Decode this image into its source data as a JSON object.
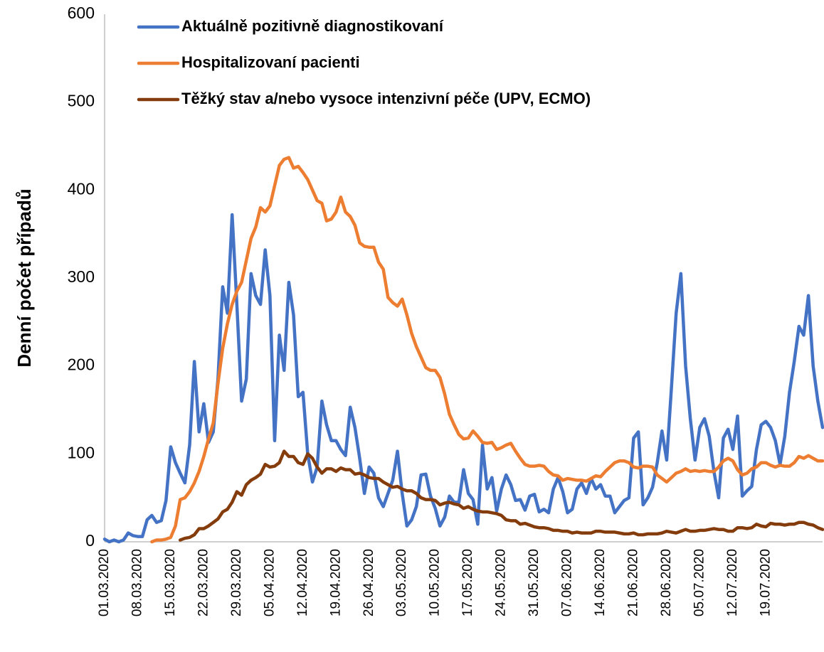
{
  "chart_data": {
    "type": "line",
    "ylabel": "Denní počet případů",
    "ylim": [
      0,
      600
    ],
    "yticks": [
      0,
      100,
      200,
      300,
      400,
      500,
      600
    ],
    "grid": false,
    "legend": "top-left",
    "categories": [
      "01.03.2020",
      null,
      null,
      null,
      null,
      null,
      null,
      "08.03.2020",
      null,
      null,
      null,
      null,
      null,
      null,
      "15.03.2020",
      null,
      null,
      null,
      null,
      null,
      null,
      "22.03.2020",
      null,
      null,
      null,
      null,
      null,
      null,
      "29.03.2020",
      null,
      null,
      null,
      null,
      null,
      null,
      "05.04.2020",
      null,
      null,
      null,
      null,
      null,
      null,
      "12.04.2020",
      null,
      null,
      null,
      null,
      null,
      null,
      "19.04.2020",
      null,
      null,
      null,
      null,
      null,
      null,
      "26.04.2020",
      null,
      null,
      null,
      null,
      null,
      null,
      "03.05.2020",
      null,
      null,
      null,
      null,
      null,
      null,
      "10.05.2020",
      null,
      null,
      null,
      null,
      null,
      null,
      "17.05.2020",
      null,
      null,
      null,
      null,
      null,
      null,
      "24.05.2020",
      null,
      null,
      null,
      null,
      null,
      null,
      "31.05.2020",
      null,
      null,
      null,
      null,
      null,
      null,
      "07.06.2020",
      null,
      null,
      null,
      null,
      null,
      null,
      "14.06.2020",
      null,
      null,
      null,
      null,
      null,
      null,
      "21.06.2020",
      null,
      null,
      null,
      null,
      null,
      null,
      "28.06.2020",
      null,
      null,
      null,
      null,
      null,
      null,
      "05.07.2020",
      null,
      null,
      null,
      null,
      null,
      null,
      "12.07.2020",
      null,
      null,
      null,
      null,
      null,
      null,
      "19.07.2020",
      null,
      null,
      null,
      null,
      null,
      null,
      null,
      null,
      null,
      null,
      null,
      null
    ],
    "series": [
      {
        "name": "Aktuálně pozitivně diagnostikovaní",
        "color": "#4472c4",
        "values": [
          3,
          0,
          2,
          0,
          2,
          10,
          7,
          6,
          6,
          25,
          30,
          22,
          24,
          47,
          108,
          90,
          78,
          67,
          110,
          205,
          125,
          157,
          113,
          125,
          185,
          290,
          260,
          372,
          270,
          160,
          185,
          305,
          280,
          270,
          332,
          280,
          115,
          235,
          195,
          295,
          258,
          165,
          170,
          100,
          68,
          85,
          160,
          133,
          115,
          115,
          105,
          98,
          153,
          130,
          95,
          55,
          85,
          78,
          50,
          40,
          55,
          70,
          103,
          55,
          18,
          25,
          40,
          76,
          77,
          52,
          38,
          18,
          28,
          52,
          45,
          45,
          82,
          55,
          48,
          20,
          110,
          60,
          73,
          35,
          60,
          76,
          65,
          47,
          48,
          36,
          52,
          54,
          34,
          37,
          33,
          60,
          73,
          57,
          33,
          37,
          60,
          67,
          55,
          72,
          60,
          65,
          52,
          52,
          33,
          40,
          47,
          50,
          118,
          125,
          42,
          50,
          62,
          90,
          126,
          93,
          175,
          260,
          305,
          200,
          140,
          93,
          130,
          140,
          120,
          80,
          50,
          118,
          128,
          105,
          143,
          52,
          58,
          63,
          105,
          133,
          137,
          130,
          115,
          88,
          120,
          170,
          205,
          245,
          235,
          280,
          200,
          160,
          130
        ]
      },
      {
        "name": "Hospitalizovaní pacienti",
        "color": "#ed7d31",
        "values": [
          null,
          null,
          null,
          null,
          null,
          null,
          null,
          null,
          null,
          null,
          0,
          2,
          2,
          3,
          5,
          18,
          48,
          50,
          57,
          67,
          80,
          97,
          117,
          135,
          180,
          220,
          248,
          270,
          285,
          295,
          320,
          345,
          358,
          380,
          375,
          382,
          405,
          428,
          435,
          437,
          425,
          427,
          420,
          412,
          400,
          388,
          385,
          365,
          367,
          375,
          392,
          375,
          370,
          360,
          340,
          336,
          335,
          335,
          318,
          310,
          278,
          272,
          268,
          276,
          258,
          237,
          222,
          210,
          198,
          195,
          195,
          187,
          168,
          145,
          133,
          122,
          117,
          118,
          126,
          120,
          113,
          112,
          113,
          105,
          107,
          110,
          112,
          103,
          95,
          88,
          86,
          86,
          87,
          86,
          80,
          76,
          75,
          70,
          72,
          71,
          70,
          70,
          69,
          72,
          75,
          74,
          80,
          85,
          90,
          92,
          92,
          90,
          85,
          84,
          86,
          86,
          85,
          76,
          72,
          68,
          73,
          78,
          80,
          83,
          80,
          81,
          80,
          81,
          80,
          80,
          85,
          92,
          95,
          92,
          82,
          76,
          78,
          83,
          85,
          90,
          90,
          87,
          85,
          87,
          86,
          86,
          90,
          97,
          95,
          98,
          95,
          92,
          92
        ]
      },
      {
        "name": "Těžký stav a/nebo vysoce intenzivní péče (UPV, ECMO)",
        "color": "#843c0c",
        "values": [
          null,
          null,
          null,
          null,
          null,
          null,
          null,
          null,
          null,
          null,
          null,
          null,
          null,
          null,
          null,
          null,
          2,
          4,
          5,
          8,
          15,
          15,
          18,
          22,
          26,
          34,
          37,
          45,
          57,
          53,
          65,
          70,
          73,
          77,
          88,
          85,
          86,
          90,
          103,
          97,
          97,
          90,
          88,
          100,
          95,
          85,
          78,
          83,
          83,
          80,
          84,
          82,
          82,
          77,
          78,
          76,
          73,
          72,
          72,
          68,
          65,
          62,
          63,
          60,
          58,
          58,
          55,
          50,
          48,
          48,
          47,
          42,
          44,
          45,
          43,
          42,
          38,
          40,
          37,
          35,
          34,
          34,
          33,
          32,
          30,
          25,
          24,
          24,
          20,
          21,
          19,
          17,
          16,
          16,
          15,
          13,
          13,
          12,
          12,
          10,
          11,
          10,
          10,
          10,
          12,
          12,
          11,
          11,
          11,
          10,
          9,
          9,
          10,
          8,
          8,
          9,
          9,
          9,
          10,
          12,
          11,
          10,
          12,
          14,
          12,
          12,
          13,
          13,
          14,
          15,
          14,
          14,
          12,
          12,
          16,
          16,
          15,
          16,
          20,
          18,
          17,
          21,
          20,
          20,
          19,
          20,
          20,
          22,
          22,
          20,
          19,
          16,
          14
        ]
      }
    ]
  }
}
